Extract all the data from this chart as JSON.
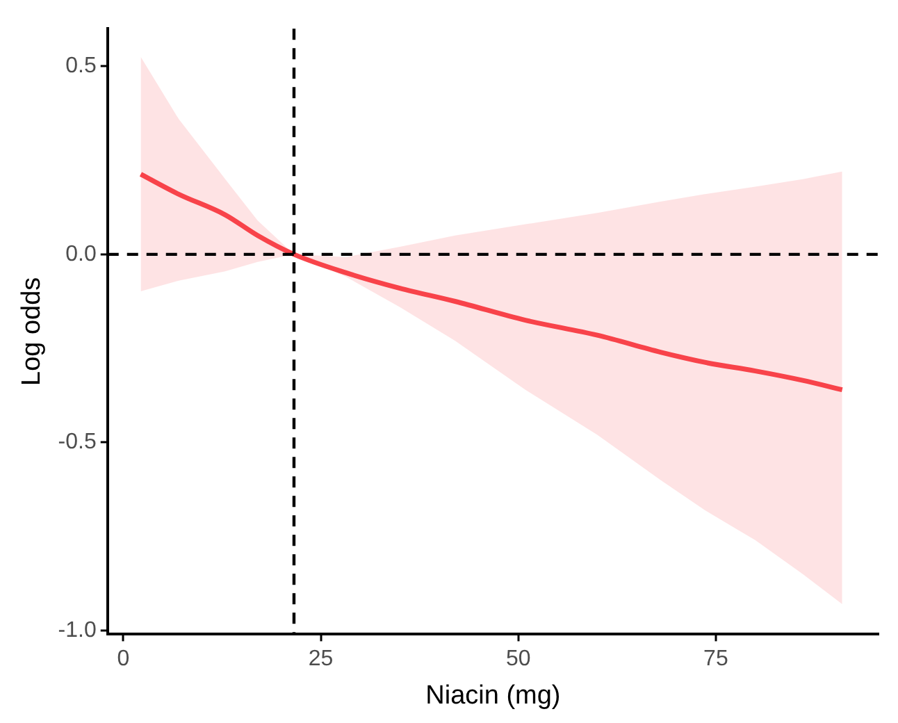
{
  "chart_data": {
    "type": "line",
    "xlabel": "Niacin (mg)",
    "ylabel": "Log odds",
    "xlim": [
      -2,
      95.6
    ],
    "ylim": [
      -1.01,
      0.6
    ],
    "xticks": [
      0,
      25,
      50,
      75
    ],
    "yticks": [
      {
        "value": -1,
        "label": "-1.0"
      },
      {
        "value": -0.5,
        "label": "-0.5"
      },
      {
        "value": 0,
        "label": "0.0"
      },
      {
        "value": 0.5,
        "label": "0.5"
      }
    ],
    "grid": false,
    "legend": false,
    "marker": "none",
    "line_style": "solid",
    "series": [
      {
        "color": "#f8444a",
        "x": [
          2.2,
          7,
          12.9,
          17,
          21.6,
          28.2,
          35,
          42,
          50.9,
          60,
          68,
          73.6,
          80,
          86,
          91
        ],
        "values": [
          0.213,
          0.16,
          0.105,
          0.05,
          0,
          -0.049,
          -0.09,
          -0.125,
          -0.175,
          -0.215,
          -0.26,
          -0.287,
          -0.31,
          -0.335,
          -0.36
        ],
        "lower": [
          -0.098,
          -0.07,
          -0.045,
          -0.02,
          0,
          -0.06,
          -0.14,
          -0.23,
          -0.36,
          -0.48,
          -0.6,
          -0.68,
          -0.76,
          -0.85,
          -0.93
        ],
        "upper": [
          0.525,
          0.36,
          0.2,
          0.09,
          0,
          -0.007,
          0.02,
          0.05,
          0.08,
          0.11,
          0.14,
          0.16,
          0.18,
          0.2,
          0.22
        ]
      }
    ],
    "ref_lines": [
      {
        "axis": "y",
        "value": 0,
        "line_style": "dashed",
        "color": "#000000"
      },
      {
        "axis": "x",
        "value": 21.6,
        "line_style": "dashed",
        "color": "#000000"
      }
    ]
  }
}
